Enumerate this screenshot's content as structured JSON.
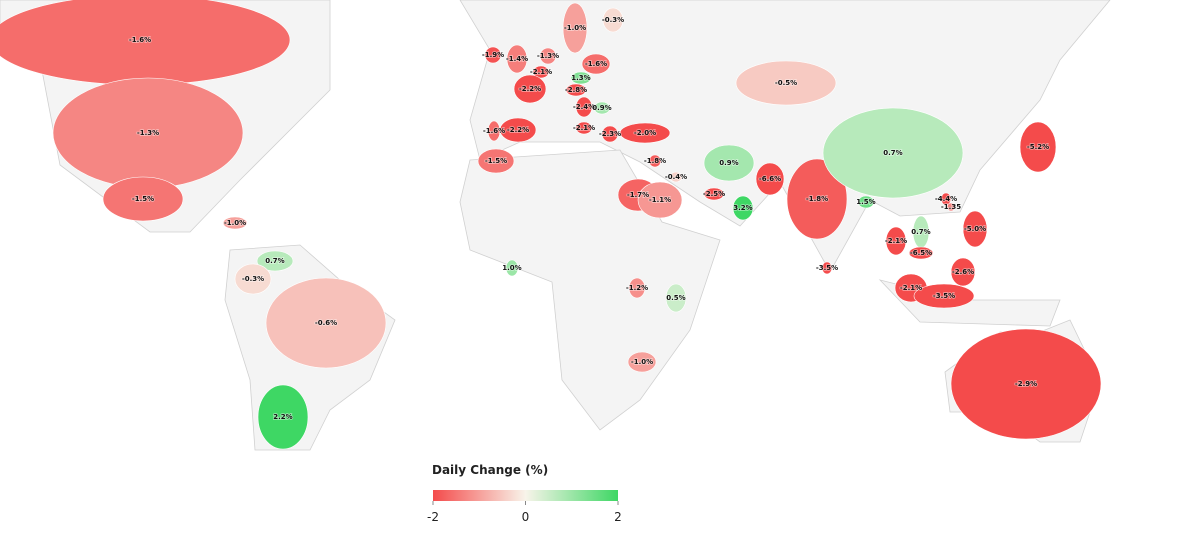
{
  "map": {
    "legend": {
      "title": "Daily Change (%)",
      "range": [
        -2,
        2
      ],
      "ticks": [
        -2,
        0,
        2
      ],
      "colorscale": [
        "#f44b4b",
        "#f8f4ea",
        "#3ed764"
      ]
    },
    "regions": [
      {
        "value": -1.6,
        "label": "-1.6%"
      },
      {
        "value": -1.3,
        "label": "-1.3%"
      },
      {
        "value": -1.5,
        "label": "-1.5%"
      },
      {
        "value": -1.0,
        "label": "-1.0%"
      },
      {
        "value": 0.7,
        "label": "0.7%"
      },
      {
        "value": -0.3,
        "label": "-0.3%"
      },
      {
        "value": -0.6,
        "label": "-0.6%"
      },
      {
        "value": 2.2,
        "label": "2.2%"
      },
      {
        "value": -1.9,
        "label": "-1.9%"
      },
      {
        "value": -1.4,
        "label": "-1.4%"
      },
      {
        "value": -1.3,
        "label": "-1.3%"
      },
      {
        "value": -1.0,
        "label": "-1.0%"
      },
      {
        "value": -0.3,
        "label": "-0.3%"
      },
      {
        "value": -1.6,
        "label": "-1.6%"
      },
      {
        "value": -2.1,
        "label": "-2.1%"
      },
      {
        "value": 1.3,
        "label": "1.3%"
      },
      {
        "value": -2.2,
        "label": "-2.2%"
      },
      {
        "value": -2.8,
        "label": "-2.8%"
      },
      {
        "value": -2.4,
        "label": "-2.4%"
      },
      {
        "value": 0.9,
        "label": "0.9%"
      },
      {
        "value": -1.6,
        "label": "-1.6%"
      },
      {
        "value": -2.2,
        "label": "-2.2%"
      },
      {
        "value": -2.1,
        "label": "-2.1%"
      },
      {
        "value": -2.3,
        "label": "-2.3%"
      },
      {
        "value": -2.0,
        "label": "-2.0%"
      },
      {
        "value": -1.8,
        "label": "-1.8%"
      },
      {
        "value": -1.5,
        "label": "-1.5%"
      },
      {
        "value": -1.7,
        "label": "-1.7%"
      },
      {
        "value": -1.1,
        "label": "-1.1%"
      },
      {
        "value": -0.4,
        "label": "-0.4%"
      },
      {
        "value": -2.5,
        "label": "-2.5%"
      },
      {
        "value": 3.2,
        "label": "3.2%"
      },
      {
        "value": 0.9,
        "label": "0.9%"
      },
      {
        "value": -6.6,
        "label": "-6.6%"
      },
      {
        "value": -1.8,
        "label": "-1.8%"
      },
      {
        "value": -3.5,
        "label": "-3.5%"
      },
      {
        "value": 1.5,
        "label": "1.5%"
      },
      {
        "value": -0.5,
        "label": "-0.5%"
      },
      {
        "value": 0.7,
        "label": "0.7%"
      },
      {
        "value": -5.2,
        "label": "-5.2%"
      },
      {
        "value": -4.4,
        "label": "-4.4%"
      },
      {
        "value": -1.35,
        "label": "-1.35"
      },
      {
        "value": -5.0,
        "label": "-5.0%"
      },
      {
        "value": 0.7,
        "label": "0.7%"
      },
      {
        "value": -2.1,
        "label": "-2.1%"
      },
      {
        "value": -6.5,
        "label": "-6.5%"
      },
      {
        "value": -2.6,
        "label": "-2.6%"
      },
      {
        "value": -2.1,
        "label": "-2.1%"
      },
      {
        "value": -3.5,
        "label": "-3.5%"
      },
      {
        "value": 1.0,
        "label": "1.0%"
      },
      {
        "value": -1.2,
        "label": "-1.2%"
      },
      {
        "value": 0.5,
        "label": "0.5%"
      },
      {
        "value": -1.0,
        "label": "-1.0%"
      },
      {
        "value": -2.9,
        "label": "-2.9%"
      }
    ]
  }
}
